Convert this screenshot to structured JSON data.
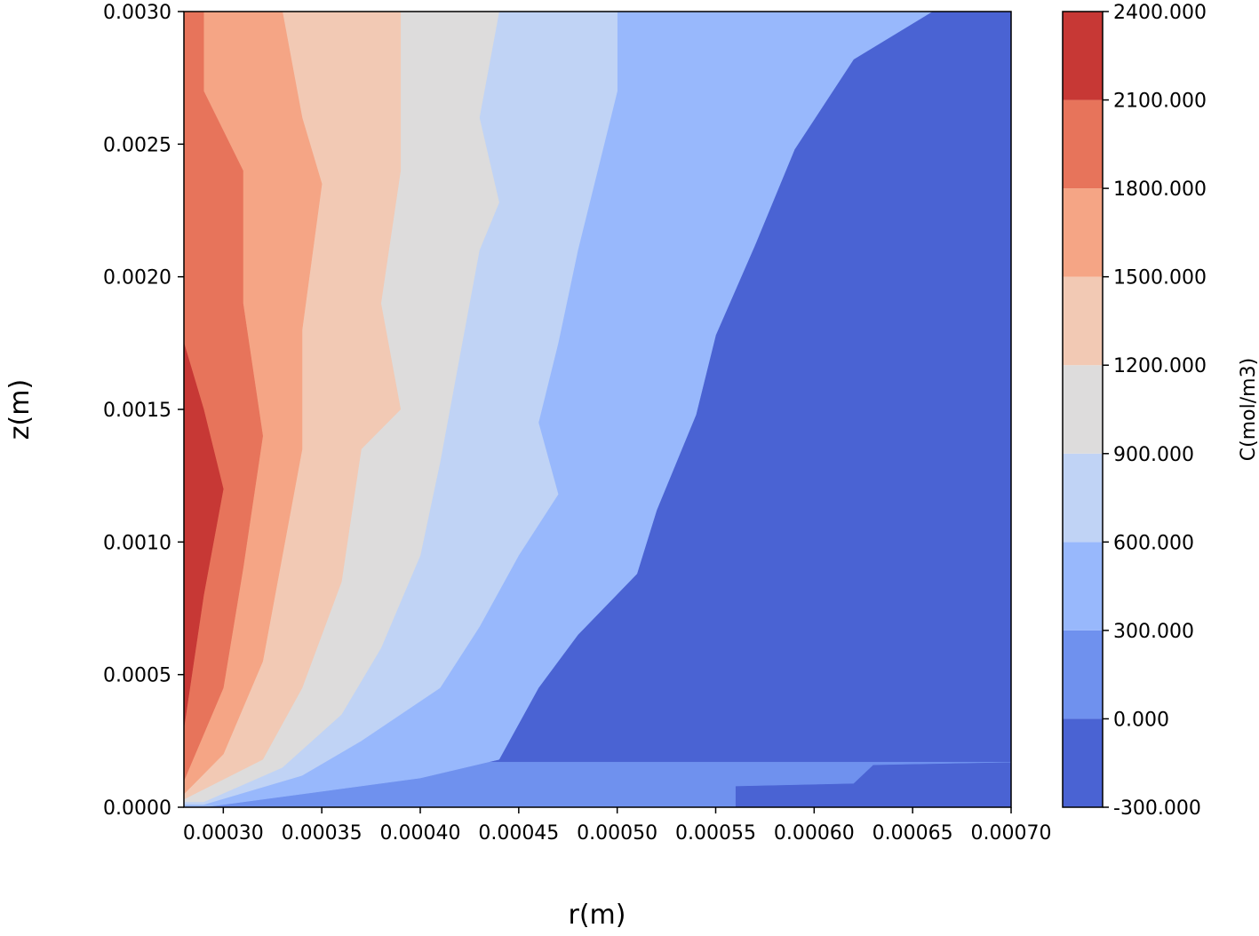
{
  "chart_data": {
    "type": "contour",
    "xlabel": "r(m)",
    "ylabel": "z(m)",
    "colorbar_label": "C(mol/m3)",
    "xlim": [
      0.00028,
      0.0007
    ],
    "ylim": [
      0.0,
      0.003
    ],
    "x_ticks": [
      "0.00030",
      "0.00035",
      "0.00040",
      "0.00045",
      "0.00050",
      "0.00055",
      "0.00060",
      "0.00065",
      "0.00070"
    ],
    "x_tick_values": [
      0.0003,
      0.00035,
      0.0004,
      0.00045,
      0.0005,
      0.00055,
      0.0006,
      0.00065,
      0.0007
    ],
    "y_ticks": [
      "0.0000",
      "0.0005",
      "0.0010",
      "0.0015",
      "0.0020",
      "0.0025",
      "0.0030"
    ],
    "y_tick_values": [
      0.0,
      0.0005,
      0.001,
      0.0015,
      0.002,
      0.0025,
      0.003
    ],
    "levels": [
      -300,
      0,
      300,
      600,
      900,
      1200,
      1500,
      1800,
      2100,
      2400
    ],
    "level_labels": [
      "-300.000",
      "0.000",
      "300.000",
      "600.000",
      "900.000",
      "1200.000",
      "1500.000",
      "1800.000",
      "2100.000",
      "2400.000"
    ],
    "level_colors": [
      "#4a63d3",
      "#6f91ee",
      "#98b8fc",
      "#c0d3f5",
      "#dddcdc",
      "#f2c9b4",
      "#f5a585",
      "#e7745b",
      "#c73835"
    ],
    "contour_boundaries": [
      {
        "level": 0,
        "points": [
          [
            0.00028,
            0.0
          ],
          [
            0.00056,
            0.0
          ],
          [
            0.00056,
            8e-05
          ],
          [
            0.00062,
            9e-05
          ],
          [
            0.00063,
            0.00016
          ],
          [
            0.0007,
            0.00017
          ]
        ]
      },
      {
        "level": 300,
        "points": [
          [
            0.00029,
            0.0
          ],
          [
            0.00035,
            6e-05
          ],
          [
            0.0004,
            0.00011
          ],
          [
            0.00044,
            0.00018
          ],
          [
            0.00046,
            0.00045
          ],
          [
            0.00048,
            0.00065
          ],
          [
            0.00051,
            0.00088
          ],
          [
            0.00052,
            0.00112
          ],
          [
            0.00054,
            0.00148
          ],
          [
            0.00055,
            0.00178
          ],
          [
            0.00057,
            0.00212
          ],
          [
            0.00059,
            0.00248
          ],
          [
            0.00062,
            0.00282
          ],
          [
            0.00066,
            0.003
          ]
        ]
      },
      {
        "level": 600,
        "points": [
          [
            0.00029,
            1e-05
          ],
          [
            0.00034,
            0.00012
          ],
          [
            0.00037,
            0.00025
          ],
          [
            0.00041,
            0.00045
          ],
          [
            0.00043,
            0.00068
          ],
          [
            0.00045,
            0.00095
          ],
          [
            0.00047,
            0.00118
          ],
          [
            0.00046,
            0.00145
          ],
          [
            0.00047,
            0.00175
          ],
          [
            0.00048,
            0.0021
          ],
          [
            0.00049,
            0.0024
          ],
          [
            0.0005,
            0.0027
          ],
          [
            0.0005,
            0.003
          ]
        ]
      },
      {
        "level": 900,
        "points": [
          [
            0.00029,
            2e-05
          ],
          [
            0.00033,
            0.00015
          ],
          [
            0.00036,
            0.00035
          ],
          [
            0.00038,
            0.0006
          ],
          [
            0.0004,
            0.00095
          ],
          [
            0.00041,
            0.0013
          ],
          [
            0.00042,
            0.0017
          ],
          [
            0.00043,
            0.0021
          ],
          [
            0.00044,
            0.00228
          ],
          [
            0.00043,
            0.0026
          ],
          [
            0.00044,
            0.003
          ]
        ]
      },
      {
        "level": 1200,
        "points": [
          [
            0.00028,
            3e-05
          ],
          [
            0.00032,
            0.00018
          ],
          [
            0.00034,
            0.00045
          ],
          [
            0.00036,
            0.00085
          ],
          [
            0.00037,
            0.00135
          ],
          [
            0.00039,
            0.0015
          ],
          [
            0.00038,
            0.0019
          ],
          [
            0.00039,
            0.0024
          ],
          [
            0.00039,
            0.003
          ]
        ]
      },
      {
        "level": 1500,
        "points": [
          [
            0.00028,
            5e-05
          ],
          [
            0.0003,
            0.0002
          ],
          [
            0.00032,
            0.00055
          ],
          [
            0.00033,
            0.00095
          ],
          [
            0.00034,
            0.00135
          ],
          [
            0.00034,
            0.0018
          ],
          [
            0.00035,
            0.00235
          ],
          [
            0.00034,
            0.0026
          ],
          [
            0.00033,
            0.003
          ]
        ]
      },
      {
        "level": 1800,
        "points": [
          [
            0.00028,
            0.0001
          ],
          [
            0.0003,
            0.00045
          ],
          [
            0.00031,
            0.0009
          ],
          [
            0.00032,
            0.0014
          ],
          [
            0.00031,
            0.0019
          ],
          [
            0.00031,
            0.0024
          ],
          [
            0.00029,
            0.0027
          ],
          [
            0.00029,
            0.003
          ]
        ]
      },
      {
        "level": 2100,
        "points": [
          [
            0.00028,
            0.0003
          ],
          [
            0.00029,
            0.0008
          ],
          [
            0.0003,
            0.0012
          ],
          [
            0.00029,
            0.0015
          ],
          [
            0.00028,
            0.00175
          ]
        ]
      }
    ],
    "grid": false,
    "legend": "colorbar-right"
  }
}
